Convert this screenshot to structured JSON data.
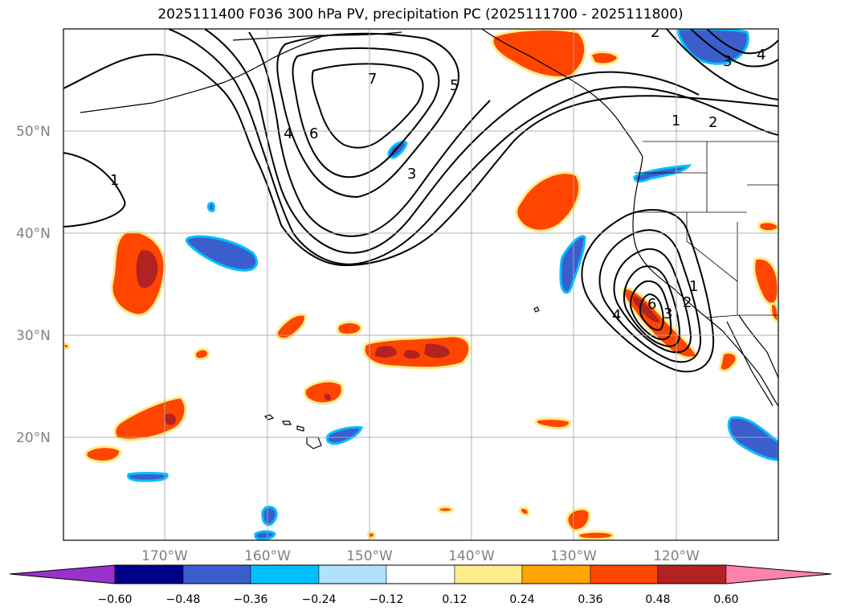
{
  "title": "2025111400 F036 300 hPa PV, precipitation PC (2025111700 - 2025111800)",
  "map": {
    "lat_labels": [
      "50°N",
      "40°N",
      "30°N",
      "20°N"
    ],
    "lon_labels": [
      "170°W",
      "160°W",
      "150°W",
      "140°W",
      "130°W",
      "120°W"
    ],
    "gridlines": true,
    "pv_contour_labels": [
      "1",
      "2",
      "3",
      "4",
      "5",
      "6",
      "7",
      "1",
      "2",
      "3",
      "4",
      "1",
      "2",
      "3",
      "4",
      "6"
    ],
    "precip_colors": {
      "strong_negative": "#3a5fcd",
      "moderate_negative": "#00bfff",
      "weak_negative": "#b0e2ff",
      "weak_positive": "#ffec8b",
      "moderate_positive": "#ffa500",
      "strong_positive": "#ff4500",
      "very_strong_positive": "#b22222"
    }
  },
  "colorbar": {
    "ticks": [
      "−0.60",
      "−0.48",
      "−0.36",
      "−0.24",
      "−0.12",
      "0.12",
      "0.24",
      "0.36",
      "0.48",
      "0.60"
    ],
    "colors": [
      "#9932cc",
      "#00008b",
      "#3a5fcd",
      "#00bfff",
      "#b0e2ff",
      "#ffffff",
      "#ffec8b",
      "#ffa500",
      "#ff4500",
      "#b22222",
      "#ff82ab"
    ]
  }
}
